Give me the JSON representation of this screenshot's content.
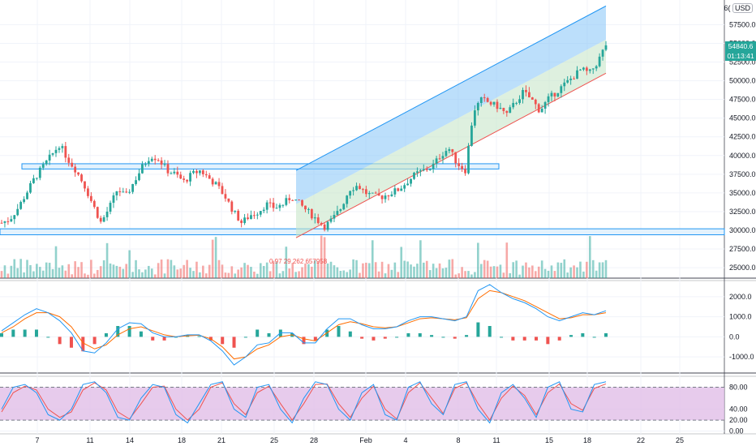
{
  "header": {
    "currency": "USD",
    "top_label": "6("
  },
  "price_badge": {
    "price": "54840.6",
    "countdown": "01:13:41",
    "color": "#26a69a"
  },
  "annotation": {
    "text": "0.97 29 262 657958",
    "color": "#ef5350"
  },
  "colors": {
    "up": "#26a69a",
    "down": "#ef5350",
    "channel_upper": "#2196f3",
    "channel_lower": "#4caf50",
    "macd": "#2196f3",
    "signal": "#ff6d00",
    "stoch_k": "#2196f3",
    "stoch_d": "#ef5350",
    "stoch_band": "#e1bee7"
  },
  "x_axis": {
    "labels": [
      "7",
      "11",
      "14",
      "18",
      "21",
      "25",
      "28",
      "Feb",
      "4",
      "8",
      "11",
      "15",
      "18",
      "22",
      "25"
    ]
  },
  "chart_data": [
    {
      "type": "candlestick",
      "title": "",
      "y_ticks": [
        "57500.0",
        "55000.0",
        "52500.0",
        "50000.0",
        "47500.0",
        "45000.0",
        "42500.0",
        "40000.0",
        "37500.0",
        "35000.0",
        "32500.0",
        "30000.0",
        "27500.0",
        "25000.0"
      ],
      "ylim": [
        23600,
        60800
      ],
      "close_path": [
        31000,
        31500,
        33000,
        35000,
        37000,
        38500,
        40000,
        41500,
        39500,
        38000,
        36000,
        33500,
        31000,
        33000,
        35500,
        34500,
        36500,
        38500,
        40000,
        39500,
        38000,
        37500,
        36500,
        37500,
        38000,
        37000,
        36000,
        34500,
        32500,
        31000,
        32000,
        32500,
        33500,
        33000,
        33500,
        34500,
        33500,
        32500,
        31500,
        30500,
        31500,
        33000,
        35500,
        36000,
        35000,
        34500,
        34500,
        35000,
        35500,
        36500,
        37500,
        38000,
        38500,
        40000,
        41000,
        39000,
        38000,
        46000,
        47500,
        47000,
        46500,
        45500,
        47000,
        48500,
        47500,
        46000,
        47500,
        48500,
        49500,
        50500,
        51500,
        51000,
        52500,
        54840
      ],
      "channel": {
        "start": [
          "27 Jan",
          29000
        ],
        "end": [
          "19 Feb",
          51000
        ],
        "upper_offset": 4500
      },
      "resistance_box": {
        "price_low": 38200,
        "price_high": 38900
      },
      "support_band": {
        "price_low": 29400,
        "price_high": 30200
      },
      "volume_note": "volume bars overlaid at the bottom of the price pane"
    },
    {
      "type": "line",
      "title": "",
      "name_hint": "MACD",
      "y_ticks": [
        "2000.0",
        "1000.0",
        "0.0",
        "-1000.0"
      ],
      "ylim": [
        -1800,
        2800
      ],
      "series": [
        {
          "values": [
            300,
            700,
            1100,
            1400,
            1200,
            800,
            200,
            -700,
            -800,
            -300,
            400,
            700,
            650,
            200,
            0,
            0,
            100,
            100,
            -200,
            -700,
            -1400,
            -1000,
            -400,
            -300,
            200,
            200,
            -300,
            -300,
            400,
            900,
            900,
            600,
            400,
            400,
            500,
            800,
            1000,
            1000,
            900,
            800,
            1000,
            2300,
            2600,
            2200,
            1900,
            1700,
            1400,
            1000,
            800,
            1000,
            1200,
            1100,
            1300
          ]
        },
        {
          "values": [
            200,
            500,
            900,
            1200,
            1200,
            1000,
            500,
            -300,
            -600,
            -400,
            100,
            400,
            500,
            300,
            100,
            0,
            50,
            80,
            -100,
            -500,
            -1100,
            -1000,
            -600,
            -400,
            0,
            100,
            -100,
            -200,
            200,
            600,
            750,
            650,
            500,
            450,
            500,
            700,
            900,
            950,
            900,
            850,
            950,
            1900,
            2300,
            2200,
            2000,
            1800,
            1500,
            1200,
            900,
            950,
            1100,
            1100,
            1200
          ]
        }
      ],
      "histogram_note": "green/red histogram bars around zero"
    },
    {
      "type": "line",
      "title": "",
      "name_hint": "Stochastic",
      "y_ticks": [
        "80.00",
        "40.00",
        "20.00",
        "0.00"
      ],
      "ylim": [
        -5,
        100
      ],
      "band": [
        20,
        80
      ],
      "series": [
        {
          "values": [
            40,
            80,
            85,
            70,
            30,
            20,
            40,
            85,
            90,
            70,
            25,
            20,
            60,
            85,
            80,
            30,
            15,
            50,
            85,
            90,
            40,
            25,
            80,
            85,
            40,
            15,
            60,
            90,
            85,
            40,
            20,
            70,
            85,
            30,
            20,
            80,
            90,
            50,
            30,
            85,
            90,
            40,
            15,
            70,
            85,
            60,
            25,
            80,
            90,
            40,
            35,
            85,
            90
          ]
        },
        {
          "values": [
            35,
            70,
            82,
            75,
            40,
            25,
            35,
            75,
            88,
            75,
            35,
            22,
            50,
            80,
            82,
            40,
            20,
            40,
            80,
            88,
            50,
            30,
            70,
            82,
            50,
            20,
            50,
            85,
            86,
            50,
            25,
            60,
            82,
            40,
            22,
            70,
            88,
            60,
            32,
            78,
            88,
            50,
            20,
            60,
            82,
            65,
            30,
            70,
            86,
            50,
            38,
            78,
            86
          ]
        }
      ]
    }
  ]
}
